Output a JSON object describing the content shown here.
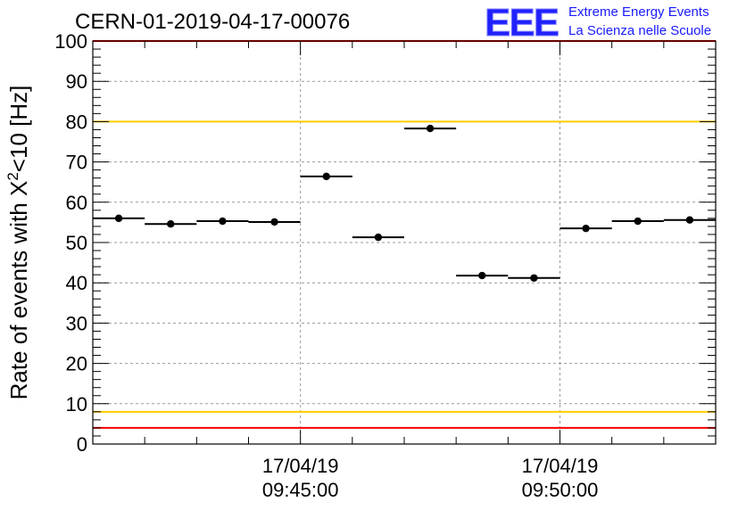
{
  "title": "CERN-01-2019-04-17-00076",
  "logo": {
    "mark": "EEE",
    "line1": "Extreme Energy Events",
    "line2": "La Scienza nelle Scuole"
  },
  "colors": {
    "red_limit": "#ff0000",
    "yellow_limit": "#ffcc00",
    "points": "#000000",
    "grid": "#999999",
    "logo": "#2020ff"
  },
  "chart_data": {
    "type": "scatter",
    "title": "CERN-01-2019-04-17-00076",
    "ylabel_parts": {
      "main": "Rate of events with X",
      "sup": "2",
      "tail": "<10 [Hz]"
    },
    "xlabel": "",
    "ylim": [
      0,
      100
    ],
    "yticks": [
      0,
      10,
      20,
      30,
      40,
      50,
      60,
      70,
      80,
      90,
      100
    ],
    "xlim_minutes_after_0945": [
      -4,
      8
    ],
    "xtick_labels": [
      {
        "minute": 0,
        "date": "17/04/19",
        "time": "09:45:00"
      },
      {
        "minute": 5,
        "date": "17/04/19",
        "time": "09:50:00"
      }
    ],
    "grid": true,
    "reference_lines": [
      {
        "y": 100,
        "color": "red"
      },
      {
        "y": 4,
        "color": "red"
      },
      {
        "y": 80,
        "color": "yellow"
      },
      {
        "y": 8,
        "color": "yellow"
      }
    ],
    "series": [
      {
        "points": [
          {
            "x": -3.5,
            "xerr": 0.5,
            "y": 56.0
          },
          {
            "x": -2.5,
            "xerr": 0.5,
            "y": 54.6
          },
          {
            "x": -1.5,
            "xerr": 0.5,
            "y": 55.3
          },
          {
            "x": -0.5,
            "xerr": 0.5,
            "y": 55.1
          },
          {
            "x": 0.5,
            "xerr": 0.5,
            "y": 66.4
          },
          {
            "x": 1.5,
            "xerr": 0.5,
            "y": 51.3
          },
          {
            "x": 2.5,
            "xerr": 0.5,
            "y": 78.3
          },
          {
            "x": 3.5,
            "xerr": 0.5,
            "y": 41.8
          },
          {
            "x": 4.5,
            "xerr": 0.5,
            "y": 41.2
          },
          {
            "x": 5.5,
            "xerr": 0.5,
            "y": 53.5
          },
          {
            "x": 6.5,
            "xerr": 0.5,
            "y": 55.3
          },
          {
            "x": 7.5,
            "xerr": 0.5,
            "y": 55.6
          }
        ]
      }
    ]
  }
}
